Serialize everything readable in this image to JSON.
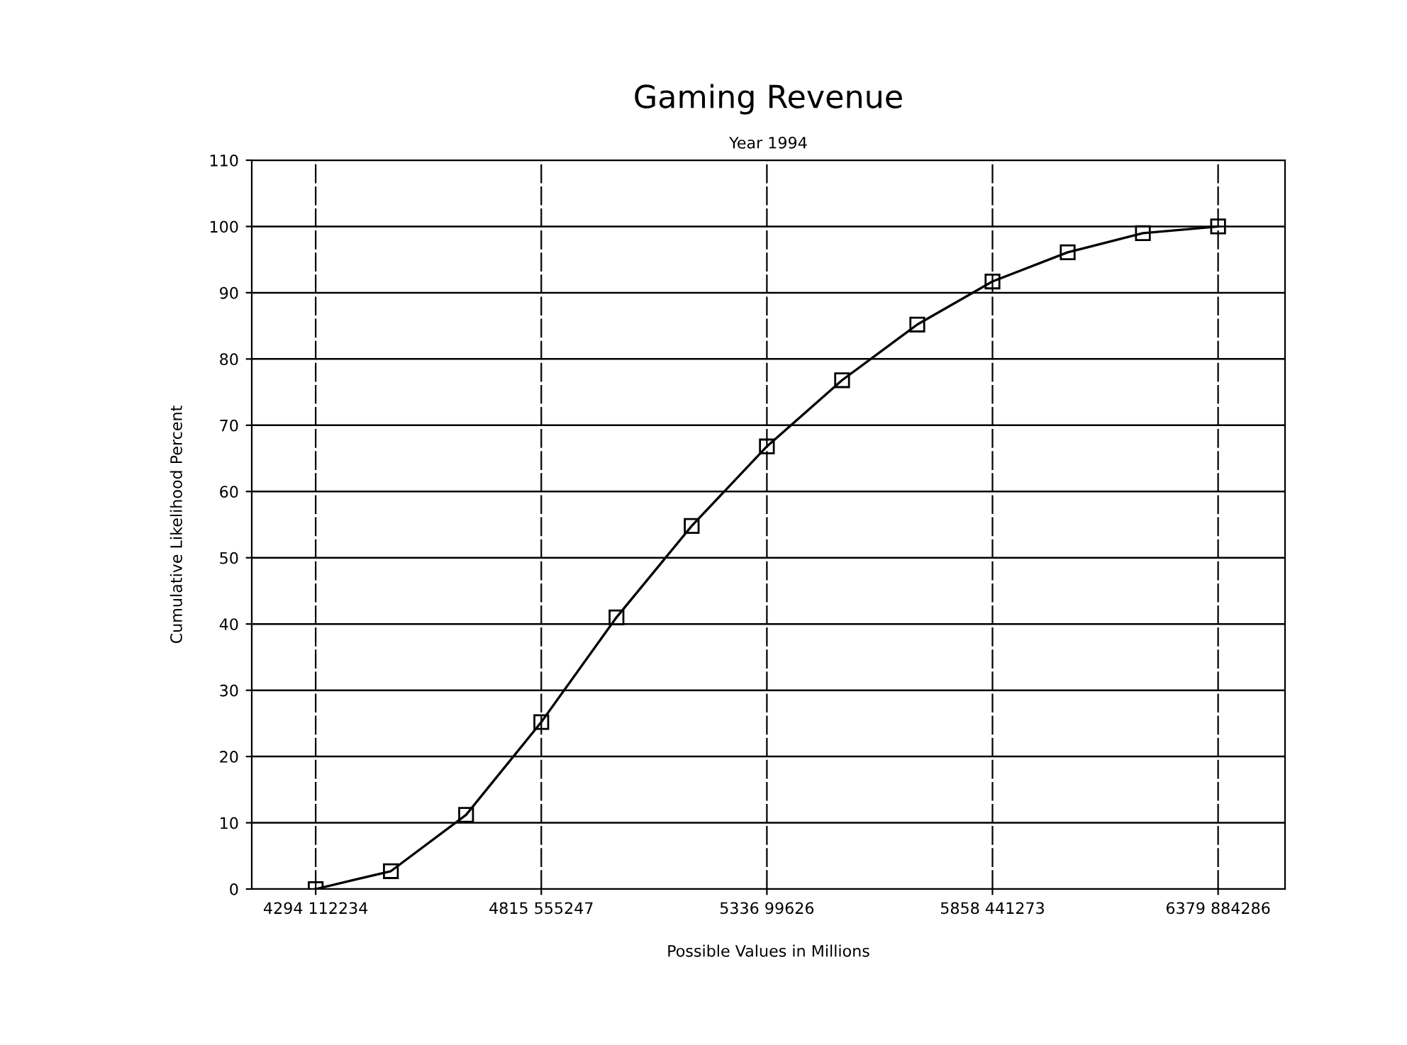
{
  "chart_data": {
    "type": "line",
    "title": "Gaming Revenue",
    "subtitle": "Year 1994",
    "xlabel": "Possible Values in Millions",
    "ylabel": "Cumulative Likelihood Percent",
    "categories": [
      "4294 112234",
      null,
      null,
      "4815 555247",
      null,
      null,
      "5336 99626",
      null,
      null,
      "5858 441273",
      null,
      null,
      "6379 884286"
    ],
    "series": [
      {
        "color": "#000000",
        "values": [
          0,
          2.7,
          11.2,
          25.2,
          41,
          54.8,
          66.8,
          76.8,
          85.2,
          91.7,
          96.1,
          99,
          100
        ]
      }
    ],
    "ylim": [
      0,
      110
    ],
    "yticks": [
      0,
      10,
      20,
      30,
      40,
      50,
      60,
      70,
      80,
      90,
      100,
      110
    ],
    "grid": true,
    "marker": "square",
    "line_style": "solid"
  }
}
